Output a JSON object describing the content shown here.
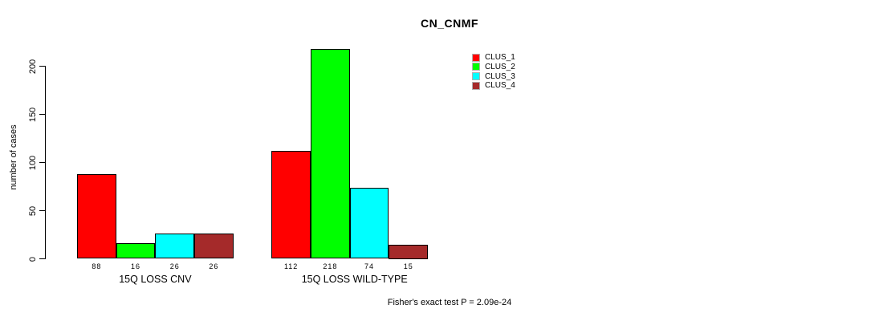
{
  "title": "CN_CNMF",
  "annotation": "Fisher's exact test P = 2.09e-24",
  "chart_data": {
    "type": "bar",
    "title": "CN_CNMF",
    "categories": [
      "15Q LOSS CNV",
      "15Q LOSS WILD-TYPE"
    ],
    "series": [
      {
        "name": "CLUS_1",
        "color": "#FF0000",
        "values": [
          88,
          112
        ]
      },
      {
        "name": "CLUS_2",
        "color": "#00FF00",
        "values": [
          16,
          218
        ]
      },
      {
        "name": "CLUS_3",
        "color": "#00FFFF",
        "values": [
          26,
          74
        ]
      },
      {
        "name": "CLUS_4",
        "color": "#A52A2A",
        "values": [
          26,
          15
        ]
      }
    ],
    "xlabel": "",
    "ylabel": "number of cases",
    "yticks": [
      0,
      50,
      100,
      150,
      200
    ],
    "ylim": [
      0,
      218
    ],
    "bar_value_labels": [
      [
        "88",
        "16",
        "26",
        "26"
      ],
      [
        "112",
        "218",
        "74",
        "15"
      ]
    ],
    "legend_position": "top-right",
    "grid": false,
    "bar_border_color": "#000000",
    "axis_color": "#000000"
  }
}
